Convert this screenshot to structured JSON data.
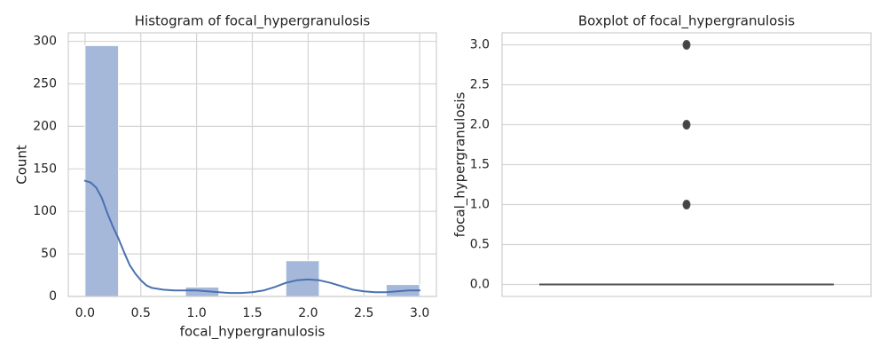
{
  "chart_data": [
    {
      "type": "bar",
      "title": "Histogram of focal_hypergranulosis",
      "xlabel": "focal_hypergranulosis",
      "ylabel": "Count",
      "xlim": [
        -0.15,
        3.15
      ],
      "ylim": [
        0,
        310
      ],
      "xticks": [
        0.0,
        0.5,
        1.0,
        1.5,
        2.0,
        2.5,
        3.0
      ],
      "xtick_labels": [
        "0.0",
        "0.5",
        "1.0",
        "1.5",
        "2.0",
        "2.5",
        "3.0"
      ],
      "yticks": [
        0,
        50,
        100,
        150,
        200,
        250,
        300
      ],
      "ytick_labels": [
        "0",
        "50",
        "100",
        "150",
        "200",
        "250",
        "300"
      ],
      "grid": true,
      "colors": {
        "bar_fill": "#a5b8da",
        "kde_line": "#4a71b0"
      },
      "bins": [
        {
          "x0": 0.0,
          "x1": 0.3,
          "count": 295
        },
        {
          "x0": 0.3,
          "x1": 0.6,
          "count": 0
        },
        {
          "x0": 0.6,
          "x1": 0.9,
          "count": 0
        },
        {
          "x0": 0.9,
          "x1": 1.2,
          "count": 11
        },
        {
          "x0": 1.2,
          "x1": 1.5,
          "count": 0
        },
        {
          "x0": 1.5,
          "x1": 1.8,
          "count": 0
        },
        {
          "x0": 1.8,
          "x1": 2.1,
          "count": 42
        },
        {
          "x0": 2.1,
          "x1": 2.4,
          "count": 0
        },
        {
          "x0": 2.4,
          "x1": 2.7,
          "count": 0
        },
        {
          "x0": 2.7,
          "x1": 3.0,
          "count": 14
        }
      ],
      "kde_points": [
        [
          0.0,
          136
        ],
        [
          0.05,
          134
        ],
        [
          0.1,
          128
        ],
        [
          0.15,
          116
        ],
        [
          0.2,
          98
        ],
        [
          0.25,
          82
        ],
        [
          0.3,
          68
        ],
        [
          0.35,
          52
        ],
        [
          0.4,
          37
        ],
        [
          0.45,
          27
        ],
        [
          0.5,
          19
        ],
        [
          0.55,
          13
        ],
        [
          0.6,
          10
        ],
        [
          0.7,
          8
        ],
        [
          0.8,
          7
        ],
        [
          0.9,
          7
        ],
        [
          1.0,
          7
        ],
        [
          1.1,
          6
        ],
        [
          1.2,
          5
        ],
        [
          1.3,
          4
        ],
        [
          1.4,
          4
        ],
        [
          1.5,
          5
        ],
        [
          1.6,
          7
        ],
        [
          1.7,
          11
        ],
        [
          1.8,
          16
        ],
        [
          1.9,
          19
        ],
        [
          2.0,
          20
        ],
        [
          2.1,
          19
        ],
        [
          2.2,
          16
        ],
        [
          2.3,
          12
        ],
        [
          2.4,
          8
        ],
        [
          2.5,
          6
        ],
        [
          2.6,
          5
        ],
        [
          2.7,
          5
        ],
        [
          2.8,
          6
        ],
        [
          2.9,
          7
        ],
        [
          3.0,
          7
        ]
      ]
    },
    {
      "type": "box",
      "title": "Boxplot of focal_hypergranulosis",
      "xlabel": "",
      "ylabel": "focal_hypergranulosis",
      "ylim": [
        -0.15,
        3.15
      ],
      "yticks": [
        0.0,
        0.5,
        1.0,
        1.5,
        2.0,
        2.5,
        3.0
      ],
      "ytick_labels": [
        "0.0",
        "0.5",
        "1.0",
        "1.5",
        "2.0",
        "2.5",
        "3.0"
      ],
      "grid": true,
      "box": {
        "min": 0.0,
        "q1": 0.0,
        "median": 0.0,
        "q3": 0.0,
        "max": 0.0
      },
      "outliers": [
        1.0,
        2.0,
        3.0
      ],
      "colors": {
        "box_line": "#4f4f4f",
        "outlier": "#444444"
      }
    }
  ]
}
